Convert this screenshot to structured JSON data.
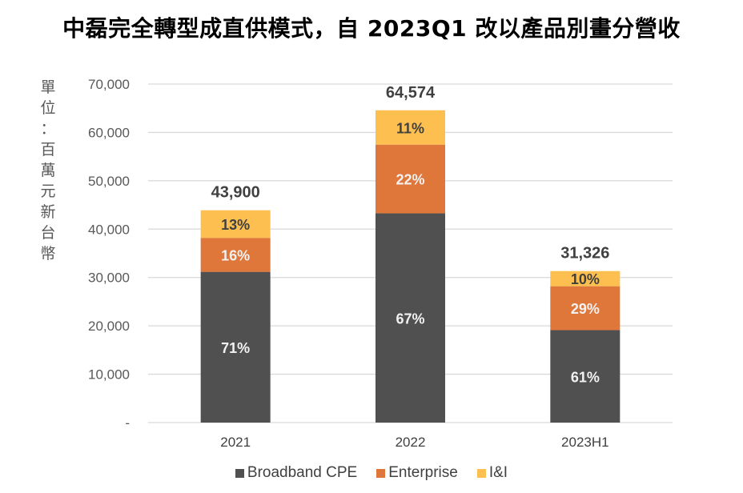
{
  "chart_data": {
    "type": "bar",
    "stacked": true,
    "title": "中磊完全轉型成直供模式，自 2023Q1 改以產品別畫分營收",
    "ylabel": "單位：百萬元新台幣",
    "xlabel": "",
    "ylim": [
      0,
      70000
    ],
    "yticks": [
      0,
      10000,
      20000,
      30000,
      40000,
      50000,
      60000,
      70000
    ],
    "ytick_labels": [
      "-",
      "10,000",
      "20,000",
      "30,000",
      "40,000",
      "50,000",
      "60,000",
      "70,000"
    ],
    "grid": true,
    "legend_position": "bottom",
    "categories": [
      "2021",
      "2022",
      "2023H1"
    ],
    "totals": [
      43900,
      64574,
      31326
    ],
    "total_labels": [
      "43,900",
      "64,574",
      "31,326"
    ],
    "series": [
      {
        "name": "Broadband CPE",
        "color": "#505050",
        "label_color": "#f2f2f2",
        "shares": [
          0.71,
          0.67,
          0.61
        ],
        "share_labels": [
          "71%",
          "67%",
          "61%"
        ]
      },
      {
        "name": "Enterprise",
        "color": "#df763a",
        "label_color": "#f2f2f2",
        "shares": [
          0.16,
          0.22,
          0.29
        ],
        "share_labels": [
          "16%",
          "22%",
          "29%"
        ]
      },
      {
        "name": "I&I",
        "color": "#fdbf4f",
        "label_color": "#404040",
        "shares": [
          0.13,
          0.11,
          0.1
        ],
        "share_labels": [
          "13%",
          "11%",
          "10%"
        ]
      }
    ]
  }
}
